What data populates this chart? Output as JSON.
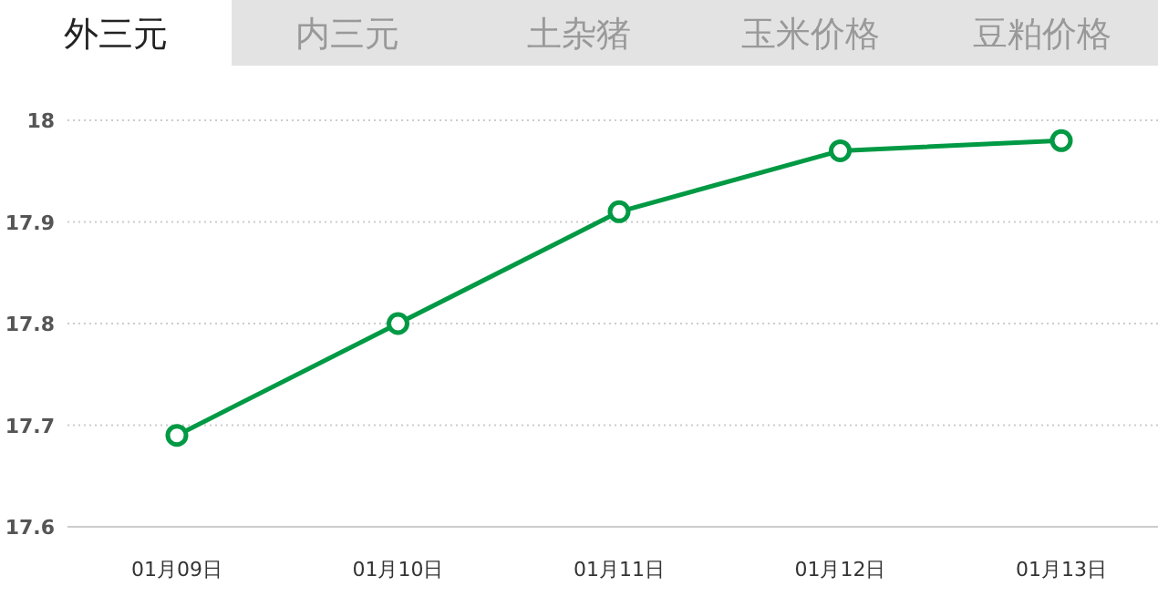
{
  "chart_data": {
    "type": "line",
    "title": "外三元",
    "annotations": [
      "内三元",
      "土杂猪",
      "玉米价格",
      "豆粕价格"
    ],
    "categories": [
      "01月09日",
      "01月10日",
      "01月11日",
      "01月12日",
      "01月13日"
    ],
    "series": [
      {
        "color": "#009944",
        "values": [
          17.69,
          17.8,
          17.91,
          17.97,
          17.98
        ]
      }
    ],
    "ylim": [
      17.6,
      18
    ],
    "yticks": [
      17.6,
      17.7,
      17.8,
      17.9,
      18
    ],
    "grid": "y",
    "marker": "circle",
    "line_style": "solid"
  }
}
